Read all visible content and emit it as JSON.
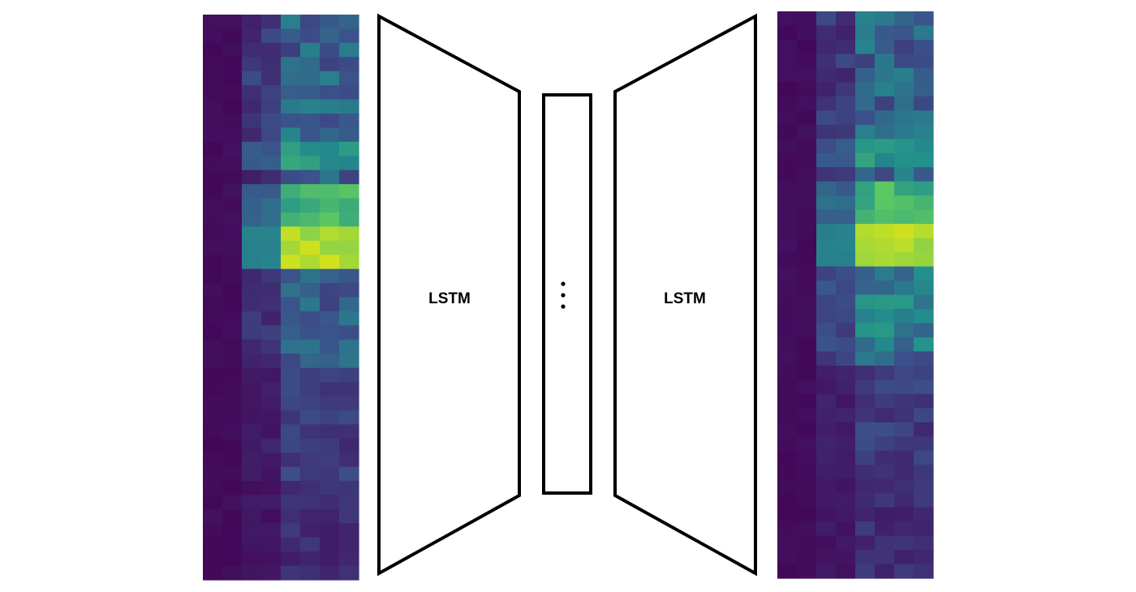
{
  "encoder": {
    "label": "LSTM"
  },
  "decoder": {
    "label": "LSTM"
  },
  "bottleneck": {
    "ellipsis": "⋮"
  },
  "colors": {
    "outline": "#000000",
    "fill": "#ffffff",
    "viridis_dark": "#440154",
    "viridis_mid": "#21918c",
    "viridis_bright": "#c8e020"
  }
}
